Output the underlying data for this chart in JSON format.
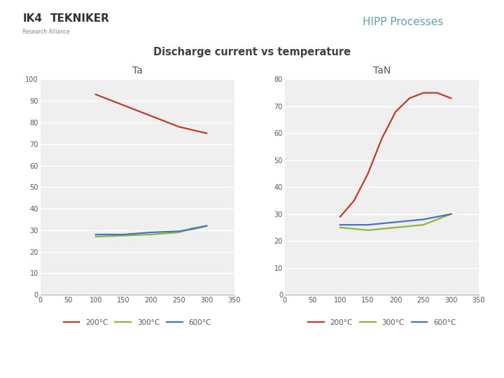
{
  "title": "Discharge current vs temperature",
  "header": "HIPP Processes",
  "left_title": "Ta",
  "right_title": "TaN",
  "legend_labels": [
    "200°C",
    "300°C",
    "600°C"
  ],
  "legend_colors": [
    "#c0392b",
    "#8db53b",
    "#4472c4"
  ],
  "ta": {
    "ylim": [
      0,
      100
    ],
    "xlim": [
      0,
      350
    ],
    "yticks": [
      0,
      10,
      20,
      30,
      40,
      50,
      60,
      70,
      80,
      90,
      100
    ],
    "xticks": [
      0,
      50,
      100,
      150,
      200,
      250,
      300,
      350
    ],
    "red": {
      "x": [
        100,
        150,
        200,
        250,
        300
      ],
      "y": [
        93,
        88,
        83,
        78,
        75
      ]
    },
    "green": {
      "x": [
        100,
        150,
        200,
        250,
        275,
        300
      ],
      "y": [
        27,
        27.5,
        28,
        29,
        31,
        32
      ]
    },
    "blue": {
      "x": [
        100,
        150,
        200,
        250,
        275,
        300
      ],
      "y": [
        28,
        28,
        29,
        29.5,
        30.5,
        32
      ]
    }
  },
  "tan": {
    "ylim": [
      0,
      80
    ],
    "xlim": [
      0,
      350
    ],
    "yticks": [
      0,
      10,
      20,
      30,
      40,
      50,
      60,
      70,
      80
    ],
    "xticks": [
      0,
      50,
      100,
      150,
      200,
      250,
      300,
      350
    ],
    "red": {
      "x": [
        100,
        125,
        150,
        175,
        200,
        225,
        250,
        275,
        300
      ],
      "y": [
        29,
        35,
        45,
        58,
        68,
        73,
        75,
        75,
        73
      ]
    },
    "green": {
      "x": [
        100,
        150,
        200,
        250,
        275,
        300
      ],
      "y": [
        25,
        24,
        25,
        26,
        28,
        30
      ]
    },
    "blue": {
      "x": [
        100,
        150,
        200,
        250,
        275,
        300
      ],
      "y": [
        26,
        26,
        27,
        28,
        29,
        30
      ]
    }
  },
  "bg_color": "#ffffff",
  "plot_bg": "#efefef",
  "grid_color": "#ffffff",
  "header_color": "#5ba3b0",
  "title_color": "#404040",
  "subtitle_color": "#555555",
  "sep_line_color": "#cccccc",
  "bottom_bar_color": "#5ba3b0",
  "tick_color": "#555555",
  "spine_color": "#aaaaaa"
}
